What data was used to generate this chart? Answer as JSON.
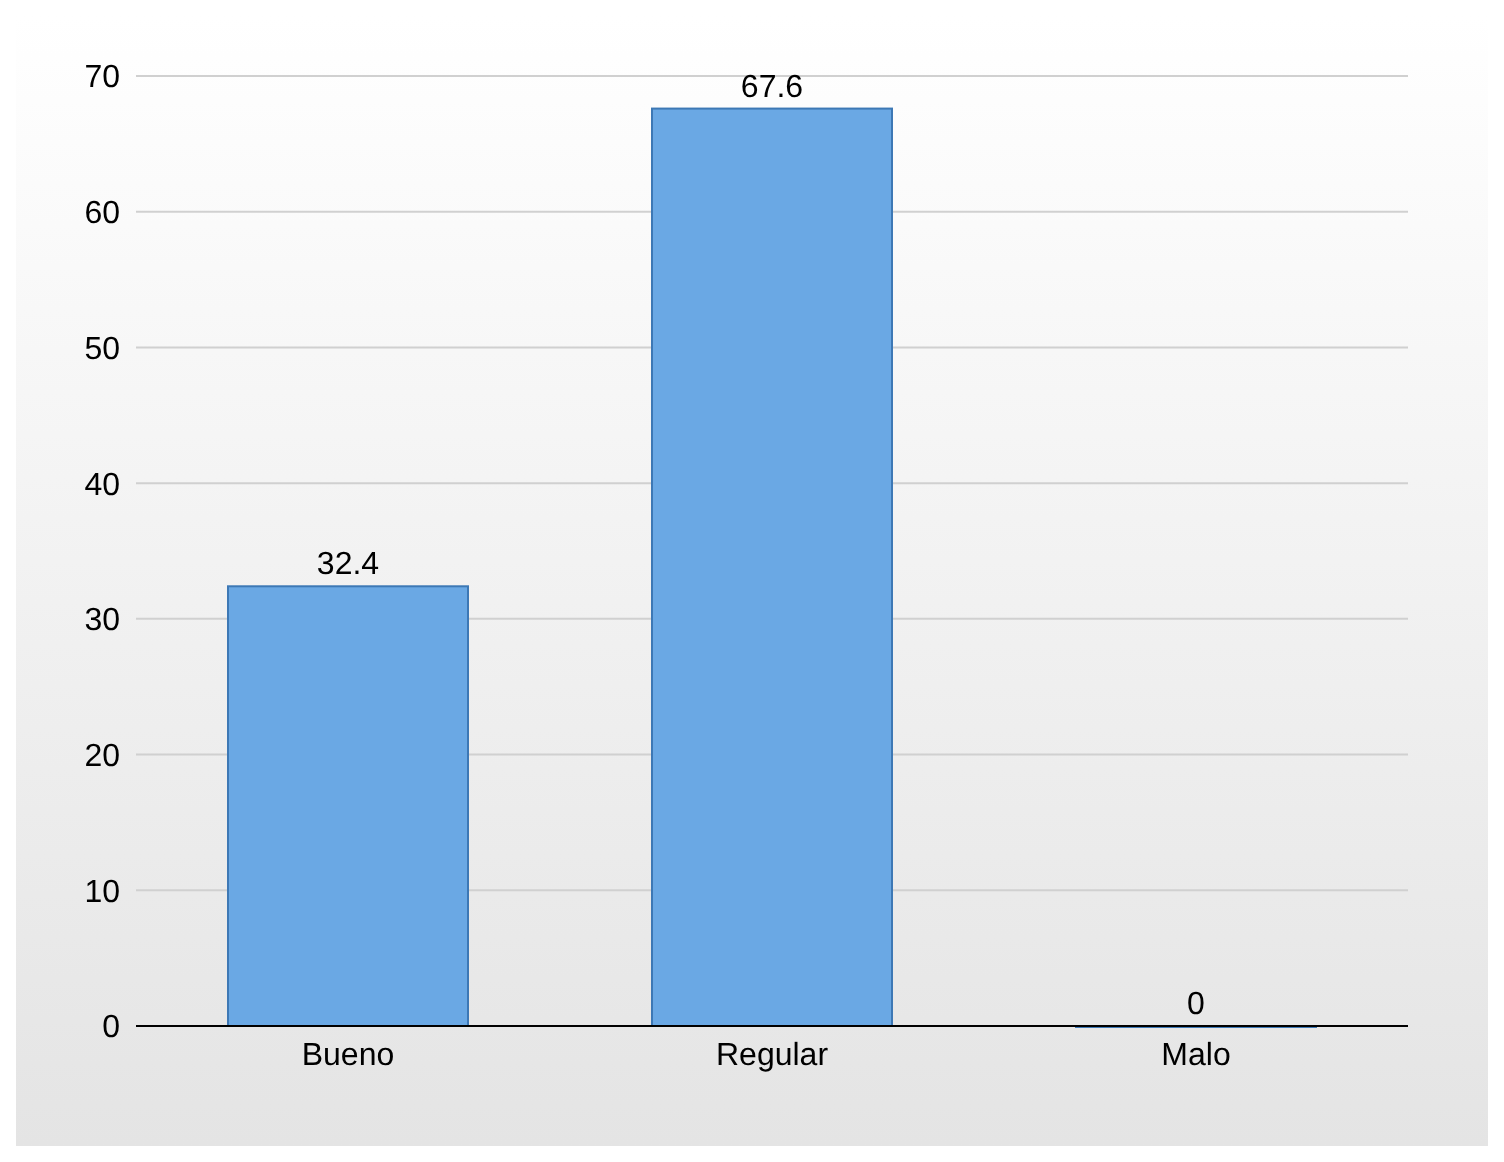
{
  "chart_data": {
    "type": "bar",
    "categories": [
      "Bueno",
      "Regular",
      "Malo"
    ],
    "values": [
      32.4,
      67.6,
      0
    ],
    "color": "#6aa8e4",
    "ylim": [
      0,
      70
    ],
    "yticks": [
      0,
      10,
      20,
      30,
      40,
      50,
      60,
      70
    ],
    "grid": "y",
    "data_labels": true
  }
}
